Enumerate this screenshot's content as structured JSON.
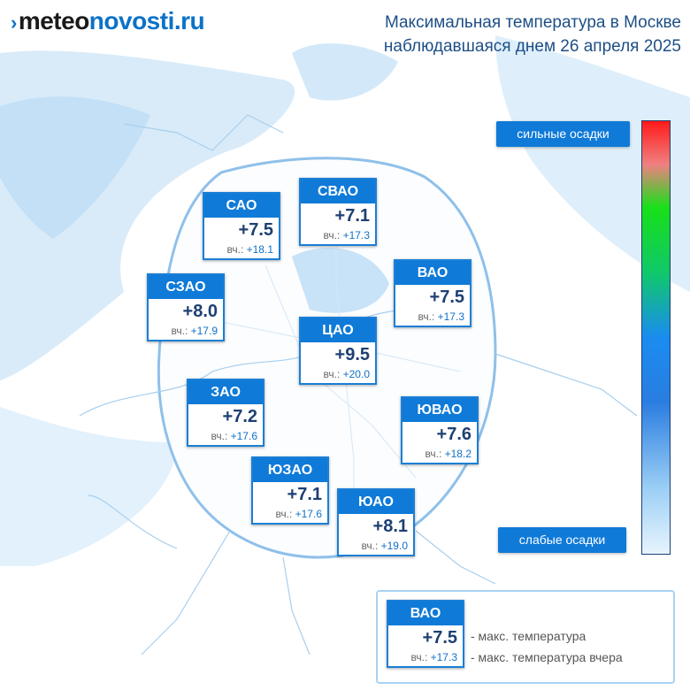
{
  "header": {
    "logo_prefix": "meteo",
    "logo_suffix": "novosti.ru",
    "title_lines": [
      "Максимальная температура в Москве",
      "наблюдавшаяся днем 26 апреля 2025"
    ]
  },
  "districts": [
    {
      "name": "САО",
      "temp": "+7.5",
      "prev_label": "вч.:",
      "prev": "+18.1"
    },
    {
      "name": "СВАО",
      "temp": "+7.1",
      "prev_label": "вч.:",
      "prev": "+17.3"
    },
    {
      "name": "СЗАО",
      "temp": "+8.0",
      "prev_label": "вч.:",
      "prev": "+17.9"
    },
    {
      "name": "ВАО",
      "temp": "+7.5",
      "prev_label": "вч.:",
      "prev": "+17.3"
    },
    {
      "name": "ЦАО",
      "temp": "+9.5",
      "prev_label": "вч.:",
      "prev": "+20.0"
    },
    {
      "name": "ЗАО",
      "temp": "+7.2",
      "prev_label": "вч.:",
      "prev": "+17.6"
    },
    {
      "name": "ЮВАО",
      "temp": "+7.6",
      "prev_label": "вч.:",
      "prev": "+18.2"
    },
    {
      "name": "ЮЗАО",
      "temp": "+7.1",
      "prev_label": "вч.:",
      "prev": "+17.6"
    },
    {
      "name": "ЮАО",
      "temp": "+8.1",
      "prev_label": "вч.:",
      "prev": "+19.0"
    }
  ],
  "scale": {
    "top": "сильные осадки",
    "bottom": "слабые осадки"
  },
  "legend": {
    "name": "ВАО",
    "temp": "+7.5",
    "prev_label": "вч.:",
    "prev": "+17.3",
    "temp_note": "- макс. температура",
    "prev_note": "- макс. температура вчера"
  }
}
